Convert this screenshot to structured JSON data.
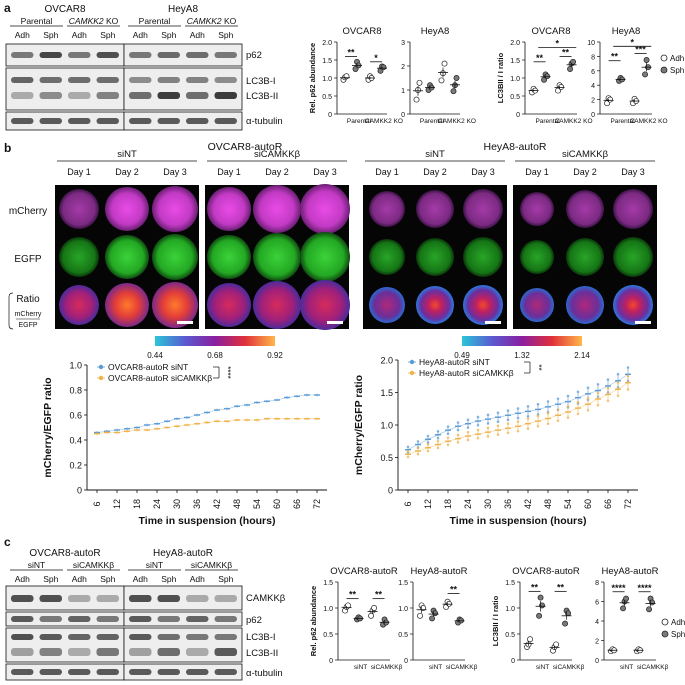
{
  "panel_labels": {
    "a": "a",
    "b": "b",
    "c": "c"
  },
  "panel_a": {
    "blot": {
      "cell_line_1": "OVCAR8",
      "cell_line_2": "HeyA8",
      "group_1": "Parental",
      "group_2": "CAMKK2 KO",
      "group_2_prefix": "CAMKK2",
      "group_2_suffix": " KO",
      "lanes": [
        "Adh",
        "Sph",
        "Adh",
        "Sph",
        "Adh",
        "Sph",
        "Adh",
        "Sph"
      ],
      "bands": [
        "p62",
        "LC3B-I",
        "LC3B-II",
        "α-tubulin"
      ],
      "band_intensity": {
        "p62": [
          0.55,
          0.8,
          0.55,
          0.75,
          0.55,
          0.62,
          0.6,
          0.55
        ],
        "LC3B-I": [
          0.65,
          0.6,
          0.6,
          0.6,
          0.45,
          0.5,
          0.5,
          0.45
        ],
        "LC3B-II": [
          0.3,
          0.45,
          0.3,
          0.5,
          0.6,
          0.85,
          0.6,
          0.85
        ],
        "α-tubulin": [
          0.7,
          0.7,
          0.7,
          0.7,
          0.7,
          0.7,
          0.7,
          0.7
        ]
      }
    }
  },
  "panel_b": {
    "ovcar": {
      "title": "OVCAR8-autoR",
      "groups": [
        "siNT",
        "siCAMKKβ"
      ],
      "days": [
        "Day 1",
        "Day 2",
        "Day 3",
        "Day 1",
        "Day 2",
        "Day 3"
      ],
      "rows": [
        "mCherry",
        "EGFP",
        "Ratio"
      ],
      "ratio_num": "mCherry",
      "ratio_den": "EGFP",
      "colorbar_ticks": [
        "0.44",
        "0.68",
        "0.92"
      ]
    },
    "heya": {
      "title": "HeyA8-autoR",
      "groups": [
        "siNT",
        "siCAMKKβ"
      ],
      "days": [
        "Day 1",
        "Day 2",
        "Day 3",
        "Day 1",
        "Day 2",
        "Day 3"
      ],
      "colorbar_ticks": [
        "0.49",
        "1.32",
        "2.14"
      ]
    }
  },
  "panel_c": {
    "blot": {
      "cell_line_1": "OVCAR8-autoR",
      "cell_line_2": "HeyA8-autoR",
      "groups": [
        "siNT",
        "siCAMKKβ",
        "siNT",
        "siCAMKKβ"
      ],
      "lanes": [
        "Adh",
        "Sph",
        "Adh",
        "Sph",
        "Adh",
        "Sph",
        "Adh",
        "Sph"
      ],
      "bands": [
        "CAMKKβ",
        "p62",
        "LC3B-I",
        "LC3B-II",
        "α-tubulin"
      ],
      "band_intensity": {
        "CAMKKβ": [
          0.75,
          0.75,
          0.3,
          0.3,
          0.75,
          0.75,
          0.3,
          0.3
        ],
        "p62": [
          0.7,
          0.55,
          0.65,
          0.55,
          0.7,
          0.55,
          0.65,
          0.55
        ],
        "LC3B-I": [
          0.75,
          0.7,
          0.65,
          0.65,
          0.7,
          0.6,
          0.55,
          0.55
        ],
        "LC3B-II": [
          0.35,
          0.5,
          0.3,
          0.55,
          0.35,
          0.6,
          0.3,
          0.7
        ],
        "α-tubulin": [
          0.7,
          0.7,
          0.7,
          0.7,
          0.7,
          0.7,
          0.7,
          0.7
        ]
      }
    }
  },
  "legend": {
    "adh": "Adh",
    "sph": "Sph"
  },
  "chart_data": [
    {
      "id": "a_p62_ovcar8",
      "type": "scatter",
      "title": "OVCAR8",
      "ylabel": "Rel. p62 abundance",
      "categories": [
        "Parental",
        "CAMKK2 KO"
      ],
      "ylim": [
        0,
        2.0
      ],
      "yticks": [
        "0",
        "0.5",
        "1.0",
        "1.5",
        "2.0"
      ],
      "series": [
        {
          "name": "Adh",
          "points": [
            [
              0,
              0.95
            ],
            [
              0,
              1.02
            ],
            [
              0,
              1.05
            ],
            [
              1,
              0.95
            ],
            [
              1,
              1.05
            ],
            [
              1,
              1.0
            ]
          ]
        },
        {
          "name": "Sph",
          "points": [
            [
              0,
              1.25
            ],
            [
              0,
              1.45
            ],
            [
              0,
              1.35
            ],
            [
              1,
              1.2
            ],
            [
              1,
              1.32
            ],
            [
              1,
              1.3
            ]
          ]
        }
      ],
      "sig": [
        {
          "from": 0,
          "to": 0,
          "y": 1.6,
          "label": "**"
        },
        {
          "from": 1,
          "to": 1,
          "y": 1.45,
          "label": "*"
        }
      ]
    },
    {
      "id": "a_p62_heya8",
      "type": "scatter",
      "title": "HeyA8",
      "ylabel": "",
      "categories": [
        "Parental",
        "CAMKK2 KO"
      ],
      "ylim": [
        0,
        3
      ],
      "yticks": [
        "0",
        "1",
        "2",
        "3"
      ],
      "series": [
        {
          "name": "Adh",
          "points": [
            [
              0,
              0.6
            ],
            [
              0,
              1.0
            ],
            [
              0,
              1.3
            ],
            [
              1,
              1.4
            ],
            [
              1,
              1.7
            ],
            [
              1,
              2.1
            ]
          ]
        },
        {
          "name": "Sph",
          "points": [
            [
              0,
              1.0
            ],
            [
              0,
              1.2
            ],
            [
              0,
              1.1
            ],
            [
              1,
              0.95
            ],
            [
              1,
              1.2
            ],
            [
              1,
              1.5
            ]
          ]
        }
      ],
      "sig": []
    },
    {
      "id": "a_lc3_ovcar8",
      "type": "scatter",
      "title": "OVCAR8",
      "ylabel": "LC3BII / I ratio",
      "categories": [
        "Parental",
        "CAMKK2 KO"
      ],
      "ylim": [
        0,
        2.0
      ],
      "yticks": [
        "0",
        "0.5",
        "1.0",
        "1.5",
        "2.0"
      ],
      "series": [
        {
          "name": "Adh",
          "points": [
            [
              0,
              0.6
            ],
            [
              0,
              0.7
            ],
            [
              0,
              0.65
            ],
            [
              1,
              0.65
            ],
            [
              1,
              0.8
            ],
            [
              1,
              0.75
            ]
          ]
        },
        {
          "name": "Sph",
          "points": [
            [
              0,
              0.95
            ],
            [
              0,
              1.1
            ],
            [
              0,
              1.05
            ],
            [
              1,
              1.25
            ],
            [
              1,
              1.4
            ],
            [
              1,
              1.45
            ]
          ]
        }
      ],
      "sig": [
        {
          "from": 0,
          "to": 0,
          "y": 1.45,
          "label": "**"
        },
        {
          "from": 1,
          "to": 1,
          "y": 1.6,
          "label": "**"
        },
        {
          "from": 0.18,
          "to": 1.18,
          "y": 1.85,
          "label": "*"
        }
      ]
    },
    {
      "id": "a_lc3_heya8",
      "type": "scatter",
      "title": "HeyA8",
      "ylabel": "",
      "categories": [
        "Parental",
        "CAMKK2 KO"
      ],
      "ylim": [
        0,
        10
      ],
      "yticks": [
        "0",
        "2",
        "4",
        "6",
        "8",
        "10"
      ],
      "series": [
        {
          "name": "Adh",
          "points": [
            [
              0,
              1.5
            ],
            [
              0,
              2.2
            ],
            [
              0,
              2.0
            ],
            [
              1,
              1.5
            ],
            [
              1,
              2.1
            ],
            [
              1,
              1.8
            ]
          ]
        },
        {
          "name": "Sph",
          "points": [
            [
              0,
              4.6
            ],
            [
              0,
              5.0
            ],
            [
              0,
              4.8
            ],
            [
              1,
              5.5
            ],
            [
              1,
              7.5
            ],
            [
              1,
              6.5
            ]
          ]
        }
      ],
      "sig": [
        {
          "from": 0,
          "to": 0,
          "y": 7.4,
          "label": "**"
        },
        {
          "from": 1,
          "to": 1,
          "y": 8.4,
          "label": "***"
        },
        {
          "from": 0.18,
          "to": 1.18,
          "y": 9.4,
          "label": "*"
        }
      ]
    },
    {
      "id": "b_ovcar_ratio",
      "type": "line",
      "ylabel": "mCherry/EGFP ratio",
      "xlabel": "Time in suspension (hours)",
      "x": [
        6,
        9,
        12,
        15,
        18,
        21,
        24,
        27,
        30,
        33,
        36,
        39,
        42,
        45,
        48,
        51,
        54,
        57,
        60,
        63,
        66,
        69,
        72
      ],
      "xticks": [
        6,
        12,
        18,
        24,
        30,
        36,
        42,
        48,
        54,
        60,
        66,
        72
      ],
      "ylim": [
        0,
        1.0
      ],
      "yticks": [
        "0",
        "0.2",
        "0.4",
        "0.6",
        "0.8",
        "1.0"
      ],
      "series": [
        {
          "name": "OVCAR8-autoR siNT",
          "color": "#5b9bd5",
          "values": [
            0.46,
            0.47,
            0.48,
            0.49,
            0.5,
            0.52,
            0.53,
            0.55,
            0.57,
            0.58,
            0.6,
            0.62,
            0.64,
            0.65,
            0.67,
            0.68,
            0.7,
            0.71,
            0.72,
            0.74,
            0.75,
            0.76,
            0.76
          ]
        },
        {
          "name": "OVCAR8-autoR siCAMKKβ",
          "color": "#f0b24a",
          "values": [
            0.45,
            0.46,
            0.46,
            0.47,
            0.48,
            0.48,
            0.49,
            0.5,
            0.51,
            0.52,
            0.53,
            0.54,
            0.55,
            0.55,
            0.56,
            0.56,
            0.56,
            0.57,
            0.57,
            0.57,
            0.57,
            0.57,
            0.57
          ]
        }
      ],
      "sig_label": "****"
    },
    {
      "id": "b_heya_ratio",
      "type": "line",
      "ylabel": "mCherry/EGFP ratio",
      "xlabel": "Time in suspension (hours)",
      "x": [
        6,
        9,
        12,
        15,
        18,
        21,
        24,
        27,
        30,
        33,
        36,
        39,
        42,
        45,
        48,
        51,
        54,
        57,
        60,
        63,
        66,
        69,
        72
      ],
      "xticks": [
        6,
        12,
        18,
        24,
        30,
        36,
        42,
        48,
        54,
        60,
        66,
        72
      ],
      "ylim": [
        0,
        2.0
      ],
      "yticks": [
        "0",
        "0.5",
        "1.0",
        "1.5",
        "2.0"
      ],
      "series": [
        {
          "name": "HeyA8-autoR siNT",
          "color": "#5b9bd5",
          "values": [
            0.62,
            0.7,
            0.78,
            0.85,
            0.92,
            0.98,
            1.02,
            1.06,
            1.09,
            1.12,
            1.15,
            1.18,
            1.21,
            1.24,
            1.28,
            1.32,
            1.36,
            1.42,
            1.48,
            1.53,
            1.6,
            1.68,
            1.78
          ]
        },
        {
          "name": "HeyA8-autoR siCAMKKβ",
          "color": "#f0b24a",
          "values": [
            0.55,
            0.6,
            0.65,
            0.7,
            0.75,
            0.79,
            0.83,
            0.86,
            0.89,
            0.92,
            0.95,
            0.98,
            1.02,
            1.06,
            1.1,
            1.15,
            1.2,
            1.26,
            1.32,
            1.4,
            1.47,
            1.55,
            1.65
          ]
        }
      ],
      "sig_label": "**"
    },
    {
      "id": "c_p62_ovcar",
      "type": "scatter",
      "title": "OVCAR8-autoR",
      "ylabel": "Rel. p62 abundance",
      "categories": [
        "siNT",
        "siCAMKKβ"
      ],
      "ylim": [
        0,
        1.5
      ],
      "yticks": [
        "0",
        "0.5",
        "1.0",
        "1.5"
      ],
      "series": [
        {
          "name": "Adh",
          "points": [
            [
              0,
              0.95
            ],
            [
              0,
              1.02
            ],
            [
              0,
              1.05
            ],
            [
              1,
              0.85
            ],
            [
              1,
              0.95
            ],
            [
              1,
              1.0
            ]
          ]
        },
        {
          "name": "Sph",
          "points": [
            [
              0,
              0.78
            ],
            [
              0,
              0.82
            ],
            [
              0,
              0.8
            ],
            [
              1,
              0.68
            ],
            [
              1,
              0.78
            ],
            [
              1,
              0.72
            ]
          ]
        }
      ],
      "sig": [
        {
          "from": 0,
          "to": 0,
          "y": 1.18,
          "label": "**"
        },
        {
          "from": 1,
          "to": 1,
          "y": 1.18,
          "label": "**"
        }
      ]
    },
    {
      "id": "c_p62_heya",
      "type": "scatter",
      "title": "HeyA8-autoR",
      "ylabel": "",
      "categories": [
        "siNT",
        "siCAMKKβ"
      ],
      "ylim": [
        0,
        1.5
      ],
      "yticks": [
        "0",
        "0.5",
        "1.0",
        "1.5"
      ],
      "series": [
        {
          "name": "Adh",
          "points": [
            [
              0,
              0.85
            ],
            [
              0,
              1.05
            ],
            [
              0,
              1.0
            ],
            [
              1,
              1.02
            ],
            [
              1,
              1.12
            ],
            [
              1,
              1.08
            ]
          ]
        },
        {
          "name": "Sph",
          "points": [
            [
              0,
              0.8
            ],
            [
              0,
              0.95
            ],
            [
              0,
              0.9
            ],
            [
              1,
              0.72
            ],
            [
              1,
              0.78
            ],
            [
              1,
              0.76
            ]
          ]
        }
      ],
      "sig": [
        {
          "from": 1,
          "to": 1,
          "y": 1.28,
          "label": "**"
        }
      ]
    },
    {
      "id": "c_lc3_ovcar",
      "type": "scatter",
      "title": "OVCAR8-autoR",
      "ylabel": "LC3BII / I ratio",
      "categories": [
        "siNT",
        "siCAMKKβ"
      ],
      "ylim": [
        0,
        1.5
      ],
      "yticks": [
        "0",
        "0.5",
        "1.0",
        "1.5"
      ],
      "series": [
        {
          "name": "Adh",
          "points": [
            [
              0,
              0.25
            ],
            [
              0,
              0.3
            ],
            [
              0,
              0.4
            ],
            [
              1,
              0.18
            ],
            [
              1,
              0.25
            ],
            [
              1,
              0.3
            ]
          ]
        },
        {
          "name": "Sph",
          "points": [
            [
              0,
              0.85
            ],
            [
              0,
              1.2
            ],
            [
              0,
              1.05
            ],
            [
              1,
              0.7
            ],
            [
              1,
              0.95
            ],
            [
              1,
              0.9
            ]
          ]
        }
      ],
      "sig": [
        {
          "from": 0,
          "to": 0,
          "y": 1.32,
          "label": "**"
        },
        {
          "from": 1,
          "to": 1,
          "y": 1.32,
          "label": "**"
        }
      ]
    },
    {
      "id": "c_lc3_heya",
      "type": "scatter",
      "title": "HeyA8-autoR",
      "ylabel": "",
      "categories": [
        "siNT",
        "siCAMKKβ"
      ],
      "ylim": [
        0,
        8
      ],
      "yticks": [
        "0",
        "2",
        "4",
        "6",
        "8"
      ],
      "series": [
        {
          "name": "Adh",
          "points": [
            [
              0,
              0.9
            ],
            [
              0,
              1.1
            ],
            [
              0,
              1.0
            ],
            [
              1,
              0.9
            ],
            [
              1,
              1.1
            ],
            [
              1,
              1.0
            ]
          ]
        },
        {
          "name": "Sph",
          "points": [
            [
              0,
              5.3
            ],
            [
              0,
              6.0
            ],
            [
              0,
              6.3
            ],
            [
              1,
              5.2
            ],
            [
              1,
              6.3
            ],
            [
              1,
              5.9
            ]
          ]
        }
      ],
      "sig": [
        {
          "from": 0,
          "to": 0,
          "y": 7.0,
          "label": "****"
        },
        {
          "from": 1,
          "to": 1,
          "y": 7.0,
          "label": "****"
        }
      ]
    }
  ]
}
